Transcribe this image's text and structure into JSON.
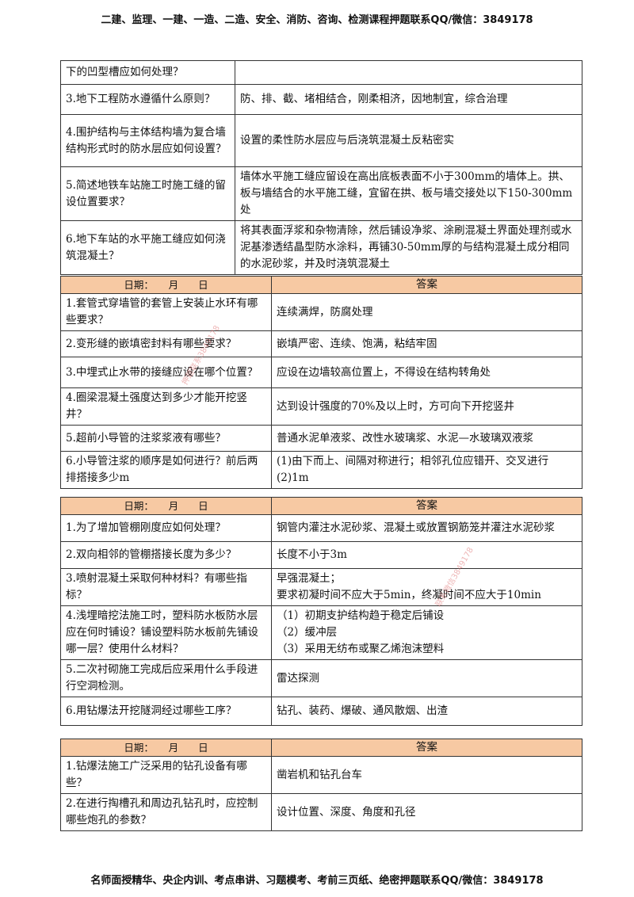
{
  "header": "二建、监理、一建、一造、二造、安全、消防、咨询、检测课程押题联系QQ/微信：3849178",
  "footer": "名师面授精华、央企内训、考点串讲、习题模考、考前三页纸、绝密押题联系QQ/微信：3849178",
  "watermarks": [
    "押题联系3849178",
    "联系微信3849178"
  ],
  "table1": {
    "rows": [
      {
        "q": "下的凹型槽应如何处理？",
        "a": ""
      },
      {
        "q": "3.地下工程防水遵循什么原则？",
        "a": "防、排、截、堵相结合，刚柔相济，因地制宜，综合治理"
      },
      {
        "q": "4.围护结构与主体结构墙为复合墙结构形式时的防水层应如何设置？",
        "a": "设置的柔性防水层应与后浇筑混凝土反粘密实"
      },
      {
        "q": "5.简述地铁车站施工时施工缝的留设位置要求？",
        "a": "墙体水平施工缝应留设在高出底板表面不小于300mm的墙体上。拱、板与墙结合的水平施工缝，宜留在拱、板与墙交接处以下150-300mm处"
      },
      {
        "q": "6.地下车站的水平施工缝应如何浇筑混凝土？",
        "a": "将其表面浮浆和杂物清除，然后铺设净浆、涂刷混凝土界面处理剂或水泥基渗透结晶型防水涂料，再铺30-50mm厚的与结构混凝土成分相同的水泥砂浆，并及时浇筑混凝土"
      }
    ]
  },
  "table2": {
    "date_label": "日期：　　月　　日",
    "answer_label": "答案",
    "rows": [
      {
        "q": "1.套管式穿墙管的套管上安装止水环有哪些要求？",
        "a": "连续满焊，防腐处理"
      },
      {
        "q": "2.变形缝的嵌填密封料有哪些要求？",
        "a": "嵌填严密、连续、饱满，粘结牢固"
      },
      {
        "q": "3.中埋式止水带的接缝应设在哪个位置？",
        "a": "应设在边墙较高位置上，不得设在结构转角处"
      },
      {
        "q": "4.圈梁混凝土强度达到多少才能开挖竖井？",
        "a": "达到设计强度的70%及以上时，方可向下开挖竖井"
      },
      {
        "q": "5.超前小导管的注浆浆液有哪些？",
        "a": "普通水泥单液浆、改性水玻璃浆、水泥—水玻璃双液浆"
      },
      {
        "q": "6.小导管注浆的顺序是如何进行？前后两排搭接多少m",
        "a1": "(1)由下而上、间隔对称进行；相邻孔位应错开、交叉进行",
        "a2": "(2)1m"
      }
    ]
  },
  "table3": {
    "date_label": "日期：　　月　　日",
    "answer_label": "答案",
    "rows": [
      {
        "q": "1.为了增加管棚刚度应如何处理？",
        "a": "钢管内灌注水泥砂浆、混凝土或放置钢筋笼并灌注水泥砂浆"
      },
      {
        "q": "2.双向相邻的管棚搭接长度为多少？",
        "a": "长度不小于3m"
      },
      {
        "q": "3.喷射混凝土采取何种材料？有哪些指标？",
        "a1": "早强混凝土；",
        "a2": "要求初凝时间不应大于5min，终凝时间不应大于10min"
      },
      {
        "q": "4.浅埋暗挖法施工时，塑料防水板防水层应在何时铺设？铺设塑料防水板前先铺设哪一层？使用什么材料？",
        "a1": "（1）初期支护结构趋于稳定后铺设",
        "a2": "（2）缓冲层",
        "a3": "（3）采用无纺布或聚乙烯泡沫塑料"
      },
      {
        "q": "5.二次衬砌施工完成后应采用什么手段进行空洞检测。",
        "a": "雷达探测"
      },
      {
        "q": "6.用钻爆法开挖隧洞经过哪些工序？",
        "a": "钻孔、装药、爆破、通风散烟、出渣"
      }
    ]
  },
  "table4": {
    "date_label": "日期：　　月　　日",
    "answer_label": "答案",
    "rows": [
      {
        "q": "1.钻爆法施工广泛采用的钻孔设备有哪些？",
        "a": "凿岩机和钻孔台车"
      },
      {
        "q": "2.在进行掏槽孔和周边孔钻孔时，应控制哪些炮孔的参数？",
        "a": "设计位置、深度、角度和孔径"
      }
    ]
  }
}
